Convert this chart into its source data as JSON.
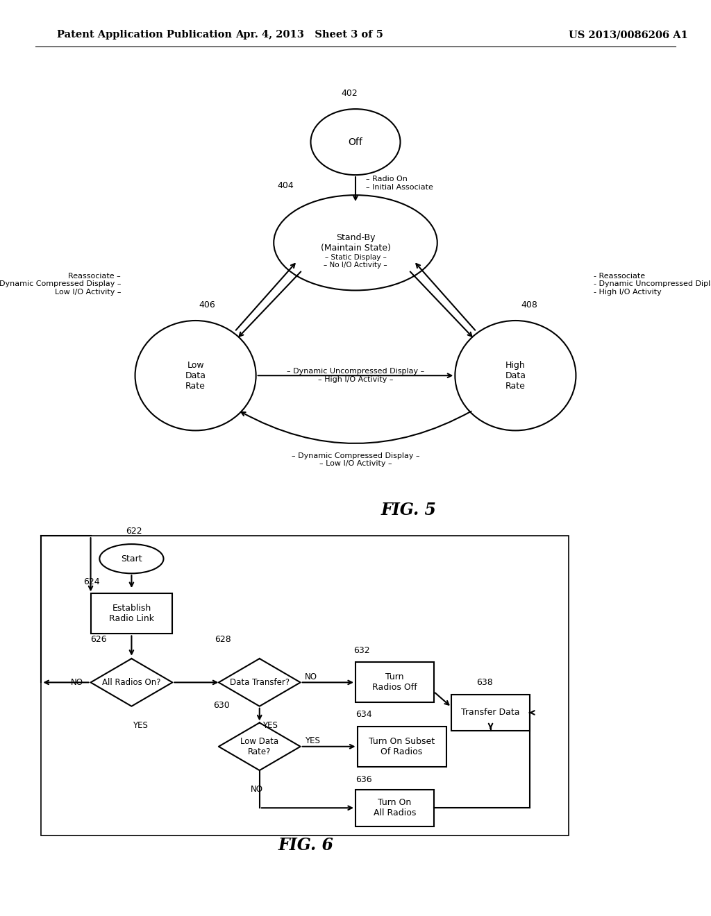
{
  "bg_color": "#ffffff",
  "header_left": "Patent Application Publication",
  "header_mid": "Apr. 4, 2013   Sheet 3 of 5",
  "header_right": "US 2013/0086206 A1",
  "fig5_label": "FIG. 5",
  "fig6_label": "FIG. 6"
}
